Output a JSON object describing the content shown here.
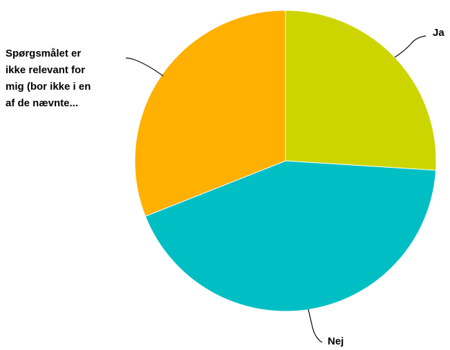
{
  "chart_data": {
    "type": "pie",
    "title": "",
    "slices": [
      {
        "label": "Ja",
        "label_lines": [
          "Ja"
        ],
        "value": 26,
        "color": "#cdd500"
      },
      {
        "label": "Nej",
        "label_lines": [
          "Nej"
        ],
        "value": 43,
        "color": "#00bfc4"
      },
      {
        "label": "Spørgsmålet er ikke relevant for mig (bor ikke i en af de nævnte...",
        "label_lines": [
          "Spørgsmålet er",
          "ikke relevant for",
          "mig (bor ikke i en",
          "af de nævnte..."
        ],
        "value": 31,
        "color": "#ffb000"
      }
    ],
    "legend": "none"
  }
}
